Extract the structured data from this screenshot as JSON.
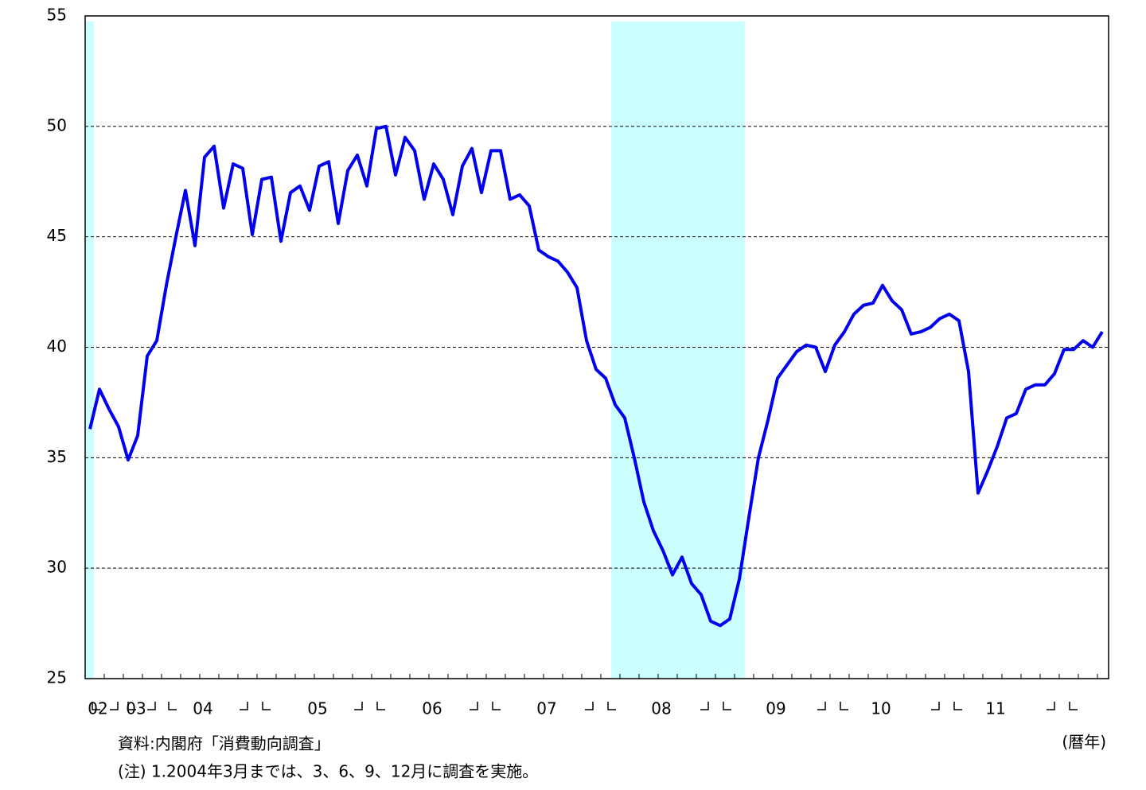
{
  "chart_data": {
    "type": "line",
    "source": "資料:内閣府「消費動向調査」",
    "note": "(注) 1.2004年3月までは、3、6、9、12月に調査を実施。",
    "x_unit": "(暦年)",
    "categories": [
      null,
      "02",
      null,
      null,
      null,
      "03",
      null,
      null,
      null,
      null,
      null,
      null,
      "04",
      null,
      null,
      null,
      null,
      null,
      null,
      null,
      null,
      null,
      null,
      null,
      "05",
      null,
      null,
      null,
      null,
      null,
      null,
      null,
      null,
      null,
      null,
      null,
      "06",
      null,
      null,
      null,
      null,
      null,
      null,
      null,
      null,
      null,
      null,
      null,
      "07",
      null,
      null,
      null,
      null,
      null,
      null,
      null,
      null,
      null,
      null,
      null,
      "08",
      null,
      null,
      null,
      null,
      null,
      null,
      null,
      null,
      null,
      null,
      null,
      "09",
      null,
      null,
      null,
      null,
      null,
      null,
      null,
      null,
      null,
      null,
      "10",
      null,
      null,
      null,
      null,
      null,
      null,
      null,
      null,
      null,
      null,
      null,
      "11",
      null,
      null,
      null,
      null,
      null,
      null,
      null,
      null,
      null,
      null,
      null
    ],
    "series": [
      {
        "color": "#0000ee",
        "values": [
          36.3,
          38.1,
          37.2,
          36.4,
          34.9,
          36.0,
          39.6,
          40.3,
          42.8,
          45.0,
          47.1,
          44.6,
          48.6,
          49.1,
          46.3,
          48.3,
          48.1,
          45.1,
          47.6,
          47.7,
          44.8,
          47.0,
          47.3,
          46.2,
          48.2,
          48.4,
          45.6,
          48.0,
          48.7,
          47.3,
          49.9,
          50.0,
          47.8,
          49.5,
          48.9,
          46.7,
          48.3,
          47.6,
          46.0,
          48.2,
          49.0,
          47.0,
          48.9,
          48.9,
          46.7,
          46.9,
          46.4,
          44.4,
          44.1,
          43.9,
          43.4,
          42.7,
          40.3,
          39.0,
          38.6,
          37.4,
          36.8,
          35.0,
          33.0,
          31.7,
          30.8,
          29.7,
          30.5,
          29.3,
          28.8,
          27.6,
          27.4,
          27.7,
          29.5,
          32.3,
          35.0,
          36.7,
          38.6,
          39.2,
          39.8,
          40.1,
          40.0,
          38.9,
          40.1,
          40.7,
          41.5,
          41.9,
          42.0,
          42.8,
          42.1,
          41.7,
          40.6,
          40.7,
          40.9,
          41.3,
          41.5,
          41.2,
          38.9,
          33.4,
          34.4,
          35.5,
          36.8,
          37.0,
          38.1,
          38.3,
          38.3,
          38.8,
          39.9,
          39.9,
          40.3,
          40.0,
          40.7
        ]
      }
    ],
    "ylim": [
      25,
      55
    ],
    "yticks": [
      25,
      30,
      35,
      40,
      45,
      50,
      55
    ],
    "grid": true
  }
}
